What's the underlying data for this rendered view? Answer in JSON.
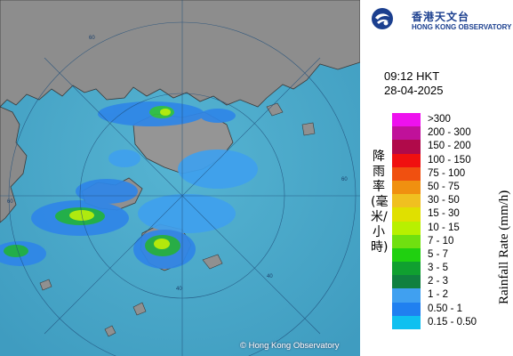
{
  "header": {
    "logo_cn": "香港天文台",
    "logo_en": "HONG KONG OBSERVATORY"
  },
  "observation": {
    "time": "09:12 HKT",
    "date": "28-04-2025"
  },
  "legend": {
    "unit_en": "Rainfall Rate (mm/h)",
    "unit_cn": "降雨率(毫米/小時)",
    "items": [
      {
        "label": ">300",
        "color": "#ee11ee"
      },
      {
        "label": "200 - 300",
        "color": "#c0119a"
      },
      {
        "label": "150 - 200",
        "color": "#b00a4a"
      },
      {
        "label": "100 - 150",
        "color": "#f01010"
      },
      {
        "label": "75 - 100",
        "color": "#f05010"
      },
      {
        "label": "50 - 75",
        "color": "#f09010"
      },
      {
        "label": "30 - 50",
        "color": "#f0c020"
      },
      {
        "label": "15 - 30",
        "color": "#e0e000"
      },
      {
        "label": "10 - 15",
        "color": "#b8f000"
      },
      {
        "label": "7 - 10",
        "color": "#70e010"
      },
      {
        "label": "5 - 7",
        "color": "#20d010"
      },
      {
        "label": "3 - 5",
        "color": "#10a030"
      },
      {
        "label": "2 - 3",
        "color": "#108040"
      },
      {
        "label": "1 - 2",
        "color": "#40a0f0"
      },
      {
        "label": "0.50 - 1",
        "color": "#2080f0"
      },
      {
        "label": "0.15 - 0.50",
        "color": "#10c0f0"
      }
    ]
  },
  "map": {
    "copyright": "© Hong Kong Observatory",
    "ring_labels": [
      "60",
      "60",
      "60",
      "40",
      "40"
    ],
    "sea_color": "#4aa8c8",
    "land_color": "#8c8c8c"
  }
}
